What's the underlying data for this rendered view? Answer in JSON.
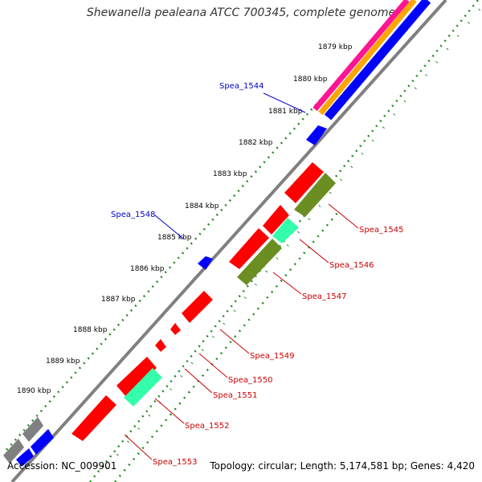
{
  "title": "Shewanella pealeana ATCC 700345, complete genome",
  "footer": {
    "accession": "Accession: NC_009901",
    "summary": "Topology: circular; Length: 5,174,581 bp; Genes: 4,420"
  },
  "ticks": [
    "1879 kbp",
    "1880 kbp",
    "1881 kbp",
    "1882 kbp",
    "1883 kbp",
    "1884 kbp",
    "1885 kbp",
    "1886 kbp",
    "1887 kbp",
    "1888 kbp",
    "1889 kbp",
    "1890 kbp"
  ],
  "gene_labels": {
    "outer": [
      "Spea_1544",
      "Spea_1548"
    ],
    "inner": [
      "Spea_1545",
      "Spea_1546",
      "Spea_1547",
      "Spea_1549",
      "Spea_1550",
      "Spea_1551",
      "Spea_1552",
      "Spea_1553"
    ]
  },
  "colors": {
    "forward_gene": "#ff0000",
    "reverse_gene": "#0000ff",
    "olive_feature": "#6b8e23",
    "aqua_feature": "#33ffaa",
    "magenta_feature": "#ff1493",
    "orange_feature": "#ffa500",
    "gray_feature": "#808080",
    "backbone": "#808080",
    "dots": "#228b22",
    "outer_label": "#0000cc",
    "inner_label": "#cc0000"
  }
}
